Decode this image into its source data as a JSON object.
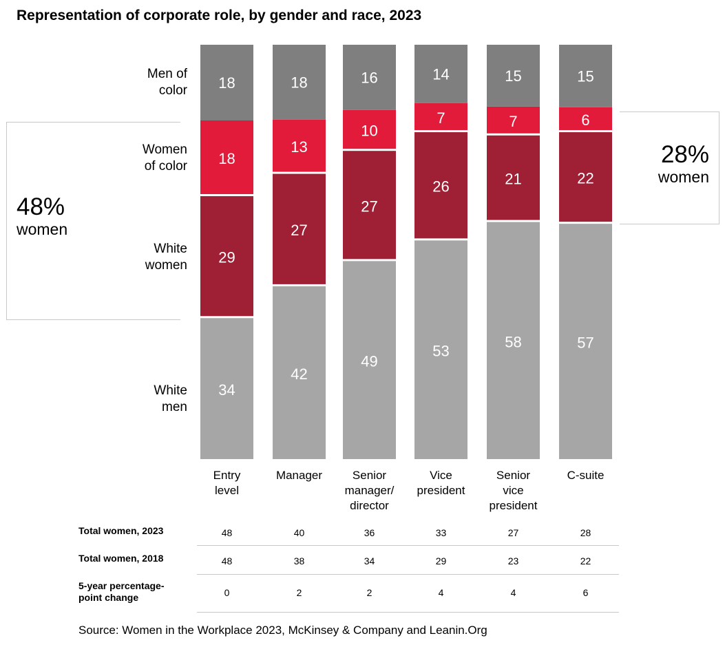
{
  "chart_data": {
    "type": "bar",
    "stacked": true,
    "percent_stacked": true,
    "title": "Representation of corporate role, by gender and race, 2023",
    "categories": [
      "Entry\nlevel",
      "Manager",
      "Senior\nmanager/\ndirector",
      "Vice\npresident",
      "Senior\nvice\npresident",
      "C-suite"
    ],
    "series": [
      {
        "name": "White\nmen",
        "color": "#a6a6a6",
        "values": [
          34,
          42,
          49,
          53,
          58,
          57
        ]
      },
      {
        "name": "White\nwomen",
        "color": "#9f1f35",
        "values": [
          29,
          27,
          27,
          26,
          21,
          22
        ]
      },
      {
        "name": "Women\nof color",
        "color": "#e31b3a",
        "values": [
          18,
          13,
          10,
          7,
          7,
          6
        ]
      },
      {
        "name": "Men of\ncolor",
        "color": "#7f7f7f",
        "values": [
          18,
          18,
          16,
          14,
          15,
          15
        ]
      }
    ],
    "grid": false,
    "legend": "left"
  },
  "callouts": {
    "left": {
      "pct": "48%",
      "word": "women"
    },
    "right": {
      "pct": "28%",
      "word": "women"
    }
  },
  "summary_table": {
    "rows": [
      {
        "label": "Total women, 2023",
        "values": [
          "48",
          "40",
          "36",
          "33",
          "27",
          "28"
        ]
      },
      {
        "label": "Total women, 2018",
        "values": [
          "48",
          "38",
          "34",
          "29",
          "23",
          "22"
        ]
      },
      {
        "label": "5-year percentage-\npoint change",
        "values": [
          "0",
          "2",
          "2",
          "4",
          "4",
          "6"
        ]
      }
    ]
  },
  "source": "Source: Women in the Workplace 2023, McKinsey & Company and Leanin.Org"
}
